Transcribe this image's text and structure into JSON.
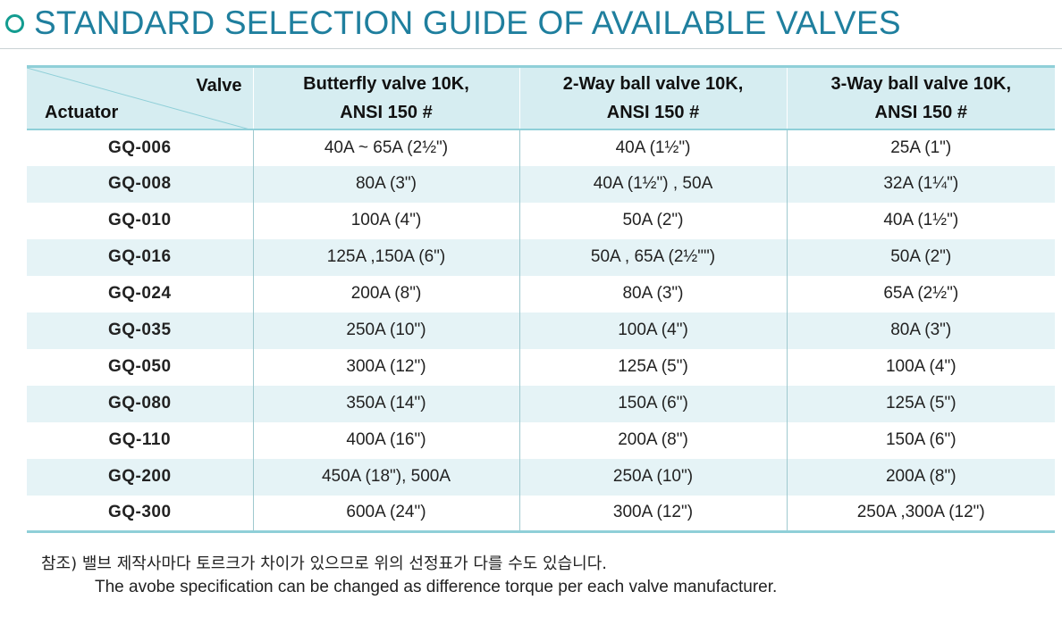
{
  "title": "STANDARD SELECTION GUIDE OF AVAILABLE VALVES",
  "table": {
    "corner_valve_label": "Valve",
    "corner_actuator_label": "Actuator",
    "columns": [
      {
        "line1": "Butterfly valve 10K,",
        "line2": "ANSI 150 #"
      },
      {
        "line1": "2-Way ball valve 10K,",
        "line2": "ANSI 150 #"
      },
      {
        "line1": "3-Way ball valve 10K,",
        "line2": "ANSI 150 #"
      }
    ],
    "rows": [
      {
        "actuator": "GQ-006",
        "cells": [
          "40A ~ 65A (2½\")",
          "40A (1½\")",
          "25A (1\")"
        ]
      },
      {
        "actuator": "GQ-008",
        "cells": [
          "80A (3\")",
          "40A (1½\") , 50A",
          "32A (1¼\")"
        ]
      },
      {
        "actuator": "GQ-010",
        "cells": [
          "100A (4\")",
          "50A (2\")",
          "40A (1½\")"
        ]
      },
      {
        "actuator": "GQ-016",
        "cells": [
          "125A ,150A (6\")",
          "50A , 65A (2½\"\")",
          "50A (2\")"
        ]
      },
      {
        "actuator": "GQ-024",
        "cells": [
          "200A (8\")",
          "80A (3\")",
          "65A (2½\")"
        ]
      },
      {
        "actuator": "GQ-035",
        "cells": [
          "250A (10\")",
          "100A (4\")",
          "80A (3\")"
        ]
      },
      {
        "actuator": "GQ-050",
        "cells": [
          "300A (12\")",
          "125A (5\")",
          "100A (4\")"
        ]
      },
      {
        "actuator": "GQ-080",
        "cells": [
          "350A (14\")",
          "150A (6\")",
          "125A (5\")"
        ]
      },
      {
        "actuator": "GQ-110",
        "cells": [
          "400A (16\")",
          "200A (8\")",
          "150A (6\")"
        ]
      },
      {
        "actuator": "GQ-200",
        "cells": [
          "450A (18\"), 500A",
          "250A (10\")",
          "200A (8\")"
        ]
      },
      {
        "actuator": "GQ-300",
        "cells": [
          "600A (24\")",
          "300A (12\")",
          "250A ,300A (12\")"
        ]
      }
    ]
  },
  "note": {
    "korean": "참조) 밸브 제작사마다 토르크가 차이가 있으므로 위의 선정표가 다를 수도 있습니다.",
    "english": "The avobe specification can be changed as difference torque per each valve manufacturer."
  },
  "colors": {
    "title": "#1f7f9e",
    "bullet": "#139c90",
    "header_bg": "#d6edf1",
    "stripe_bg": "#e5f3f6",
    "rule": "#8fcfd8"
  }
}
